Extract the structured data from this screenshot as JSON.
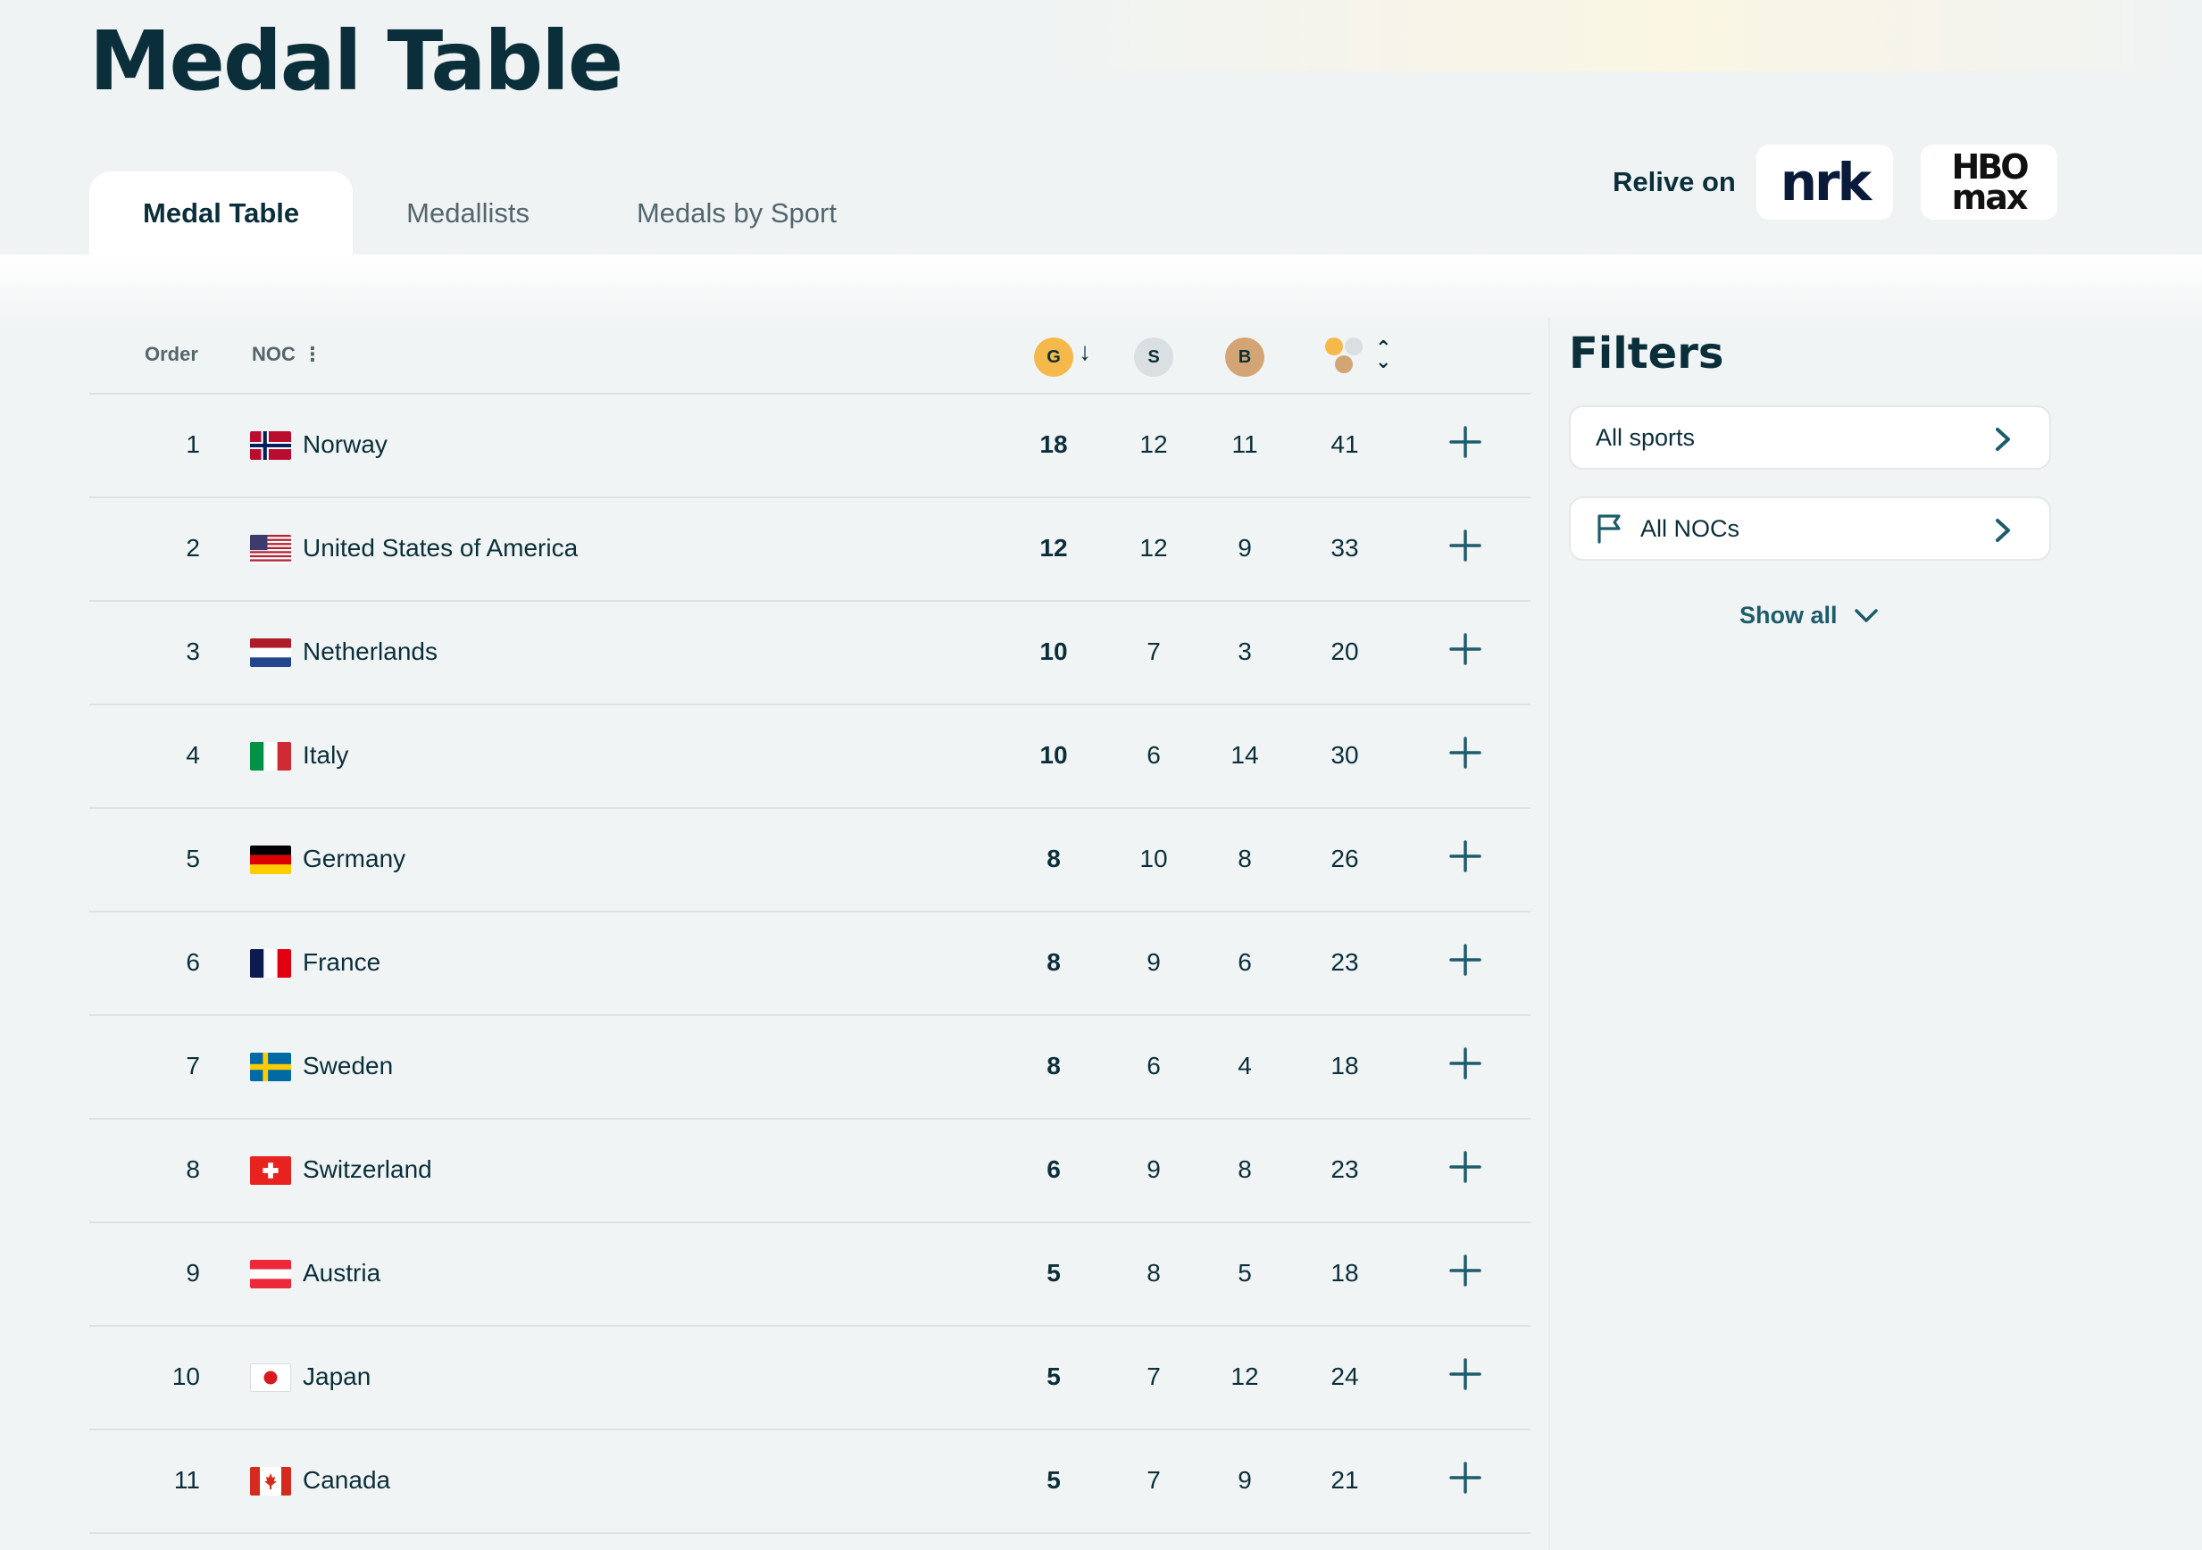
{
  "page": {
    "title": "Medal Table"
  },
  "tabs": [
    {
      "label": "Medal Table",
      "active": true
    },
    {
      "label": "Medallists",
      "active": false
    },
    {
      "label": "Medals by Sport",
      "active": false
    }
  ],
  "relive": {
    "label": "Relive on",
    "logos": [
      "NRK",
      "HBO max"
    ]
  },
  "table": {
    "headers": {
      "order": "Order",
      "noc": "NOC",
      "gold": "G",
      "silver": "S",
      "bronze": "B"
    },
    "colors": {
      "gold": "#f4b94a",
      "silver": "#dadfe1",
      "bronze": "#d4a574",
      "accent": "#1d5c6b"
    },
    "rows": [
      {
        "rank": "1",
        "country": "Norway",
        "flag": "norway-flag-icon",
        "gold": "18",
        "silver": "12",
        "bronze": "11",
        "total": "41"
      },
      {
        "rank": "2",
        "country": "United States of America",
        "flag": "usa-flag-icon",
        "gold": "12",
        "silver": "12",
        "bronze": "9",
        "total": "33"
      },
      {
        "rank": "3",
        "country": "Netherlands",
        "flag": "netherlands-flag-icon",
        "gold": "10",
        "silver": "7",
        "bronze": "3",
        "total": "20"
      },
      {
        "rank": "4",
        "country": "Italy",
        "flag": "italy-flag-icon",
        "gold": "10",
        "silver": "6",
        "bronze": "14",
        "total": "30"
      },
      {
        "rank": "5",
        "country": "Germany",
        "flag": "germany-flag-icon",
        "gold": "8",
        "silver": "10",
        "bronze": "8",
        "total": "26"
      },
      {
        "rank": "6",
        "country": "France",
        "flag": "france-flag-icon",
        "gold": "8",
        "silver": "9",
        "bronze": "6",
        "total": "23"
      },
      {
        "rank": "7",
        "country": "Sweden",
        "flag": "sweden-flag-icon",
        "gold": "8",
        "silver": "6",
        "bronze": "4",
        "total": "18"
      },
      {
        "rank": "8",
        "country": "Switzerland",
        "flag": "switzerland-flag-icon",
        "gold": "6",
        "silver": "9",
        "bronze": "8",
        "total": "23"
      },
      {
        "rank": "9",
        "country": "Austria",
        "flag": "austria-flag-icon",
        "gold": "5",
        "silver": "8",
        "bronze": "5",
        "total": "18"
      },
      {
        "rank": "10",
        "country": "Japan",
        "flag": "japan-flag-icon",
        "gold": "5",
        "silver": "7",
        "bronze": "12",
        "total": "24"
      },
      {
        "rank": "11",
        "country": "Canada",
        "flag": "canada-flag-icon",
        "gold": "5",
        "silver": "7",
        "bronze": "9",
        "total": "21"
      }
    ]
  },
  "filters": {
    "title": "Filters",
    "sports_label": "All sports",
    "nocs_label": "All NOCs",
    "show_all_label": "Show all"
  }
}
